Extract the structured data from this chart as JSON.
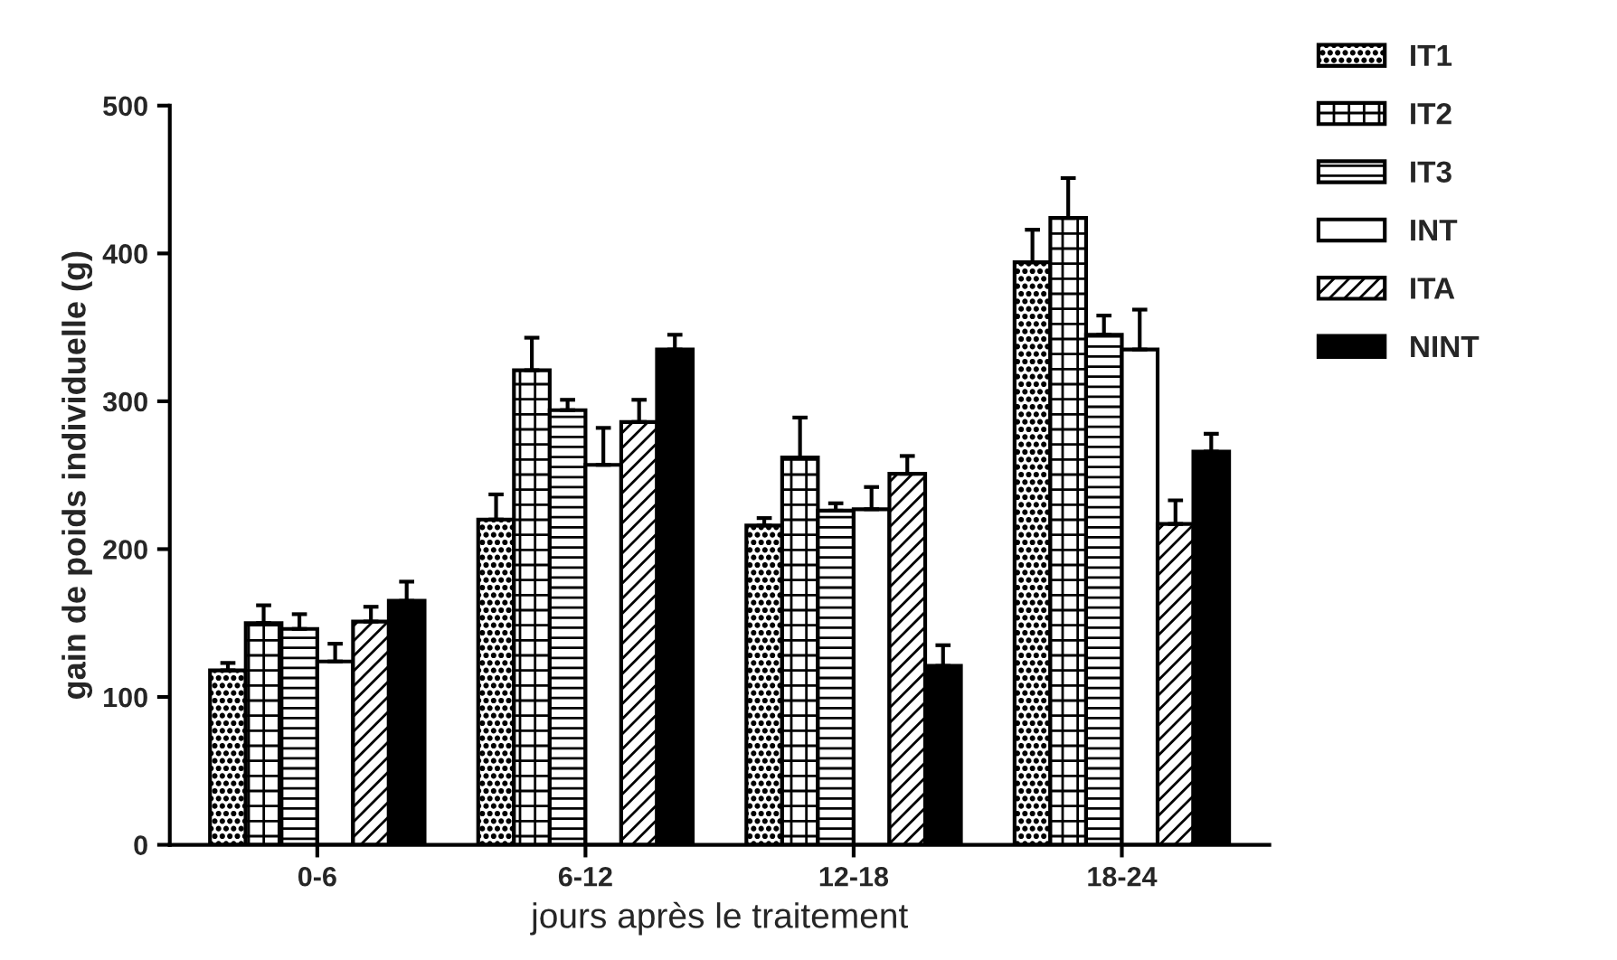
{
  "chart_data": {
    "type": "bar",
    "xlabel": "jours après le traitement",
    "ylabel": "gain de poids individuelle (g)",
    "categories": [
      "0-6",
      "6-12",
      "12-18",
      "18-24"
    ],
    "series": [
      {
        "name": "IT1",
        "color": "#000000",
        "values": [
          118,
          220,
          216,
          394
        ],
        "errors": [
          [
            118,
            123
          ],
          [
            220,
            237
          ],
          [
            216,
            221
          ],
          [
            394,
            416
          ]
        ]
      },
      {
        "name": "IT2",
        "color": "#000000",
        "values": [
          150,
          321,
          262,
          424
        ],
        "errors": [
          [
            150,
            162
          ],
          [
            321,
            343
          ],
          [
            262,
            289
          ],
          [
            424,
            451
          ]
        ]
      },
      {
        "name": "IT3",
        "color": "#000000",
        "values": [
          146,
          294,
          226,
          345
        ],
        "errors": [
          [
            146,
            156
          ],
          [
            294,
            301
          ],
          [
            226,
            231
          ],
          [
            345,
            358
          ]
        ]
      },
      {
        "name": "INT",
        "color": "#000000",
        "values": [
          124,
          257,
          227,
          335
        ],
        "errors": [
          [
            124,
            136
          ],
          [
            257,
            282
          ],
          [
            227,
            242
          ],
          [
            335,
            362
          ]
        ]
      },
      {
        "name": "ITA",
        "color": "#000000",
        "values": [
          151,
          286,
          251,
          217
        ],
        "errors": [
          [
            151,
            161
          ],
          [
            286,
            301
          ],
          [
            251,
            263
          ],
          [
            217,
            233
          ]
        ]
      },
      {
        "name": "NINT",
        "color": "#000000",
        "values": [
          165,
          335,
          121,
          266
        ],
        "errors": [
          [
            165,
            178
          ],
          [
            335,
            345
          ],
          [
            121,
            135
          ],
          [
            266,
            278
          ]
        ]
      }
    ],
    "ylim": [
      0,
      500
    ],
    "yticks": [
      0,
      100,
      200,
      300,
      400,
      500
    ],
    "grid": false,
    "legend": "top right"
  }
}
